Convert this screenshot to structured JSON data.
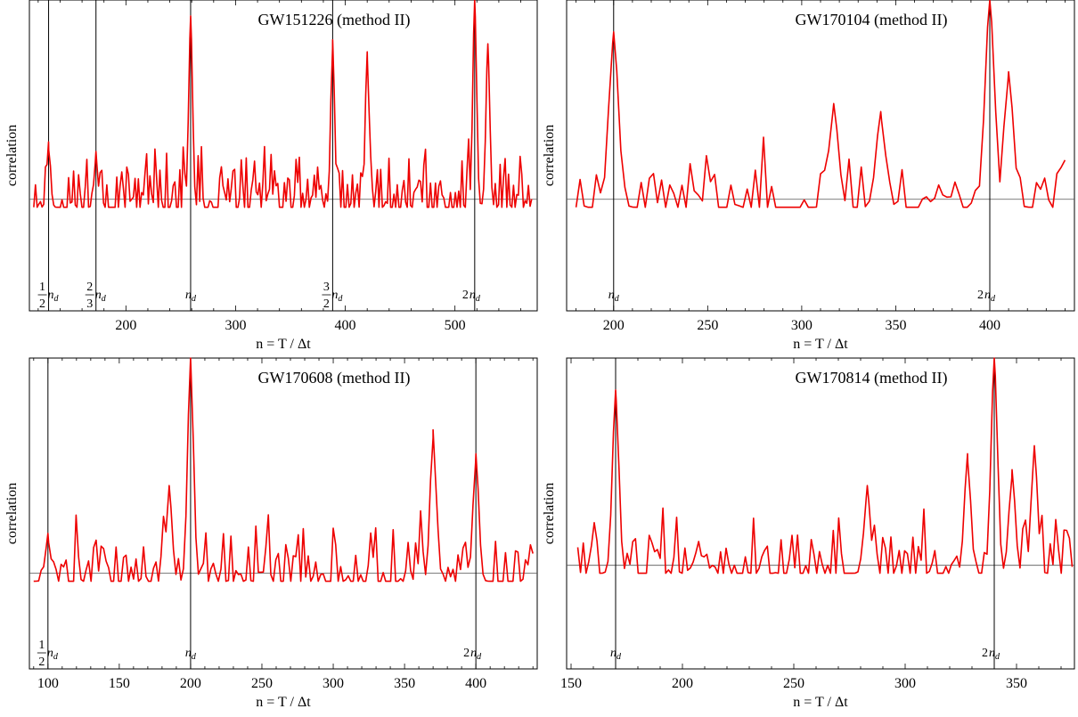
{
  "figure": {
    "xlabel": "n = T / Δt",
    "ylabel": "correlation"
  },
  "colors": {
    "series": "#ee0000",
    "axis": "#000000",
    "zero_line": "#555555"
  },
  "chart_data": [
    {
      "type": "line",
      "title": "GW151226 (method II)",
      "xlabel": "n = T / Δt",
      "ylabel": "correlation",
      "xlim": [
        112,
        575
      ],
      "ylim": [
        -1.4,
        2.5
      ],
      "xticks": [
        200,
        300,
        400,
        500
      ],
      "grid": false,
      "baseline": 0,
      "markers": [
        {
          "x": 129.5,
          "num": "1",
          "den": "2",
          "label": "n_d"
        },
        {
          "x": 172.7,
          "num": "2",
          "den": "3",
          "label": "n_d"
        },
        {
          "x": 259,
          "label": "n_d"
        },
        {
          "x": 388.5,
          "num": "3",
          "den": "2",
          "label": "n_d"
        },
        {
          "x": 518,
          "coef": "2",
          "label": "n_d"
        }
      ],
      "peaks": [
        [
          129.5,
          0.72
        ],
        [
          172.7,
          0.6
        ],
        [
          259,
          2.3
        ],
        [
          388.5,
          2.0
        ],
        [
          420,
          1.85
        ],
        [
          518,
          2.5
        ],
        [
          530,
          1.95
        ]
      ],
      "series": [
        {
          "samples": 300,
          "x_range": [
            116,
            570
          ],
          "seed": 11
        }
      ]
    },
    {
      "type": "line",
      "title": "GW170104 (method II)",
      "xlabel": "n = T / Δt",
      "ylabel": "correlation",
      "xlim": [
        175,
        445
      ],
      "ylim": [
        -1.4,
        2.5
      ],
      "xticks": [
        200,
        250,
        300,
        350,
        400
      ],
      "grid": false,
      "baseline": 0,
      "markers": [
        {
          "x": 200,
          "label": "n_d"
        },
        {
          "x": 400,
          "coef": "2",
          "label": "n_d"
        }
      ],
      "peaks": [
        [
          200,
          2.1
        ],
        [
          317,
          1.2
        ],
        [
          342,
          1.1
        ],
        [
          400,
          2.5
        ],
        [
          410,
          1.6
        ]
      ],
      "series": [
        {
          "samples": 120,
          "x_range": [
            180,
            440
          ],
          "seed": 23
        }
      ]
    },
    {
      "type": "line",
      "title": "GW170608 (method II)",
      "xlabel": "n = T / Δt",
      "ylabel": "correlation",
      "xlim": [
        87,
        443
      ],
      "ylim": [
        -1.2,
        2.7
      ],
      "xticks": [
        100,
        150,
        200,
        250,
        300,
        350,
        400
      ],
      "grid": false,
      "baseline": 0,
      "markers": [
        {
          "x": 100,
          "num": "1",
          "den": "2",
          "label": "n_d"
        },
        {
          "x": 200,
          "label": "n_d"
        },
        {
          "x": 400,
          "coef": "2",
          "label": "n_d"
        }
      ],
      "peaks": [
        [
          100,
          0.5
        ],
        [
          200,
          2.7
        ],
        [
          370,
          1.8
        ],
        [
          400,
          1.5
        ],
        [
          185,
          1.1
        ]
      ],
      "series": [
        {
          "samples": 200,
          "x_range": [
            90,
            440
          ],
          "seed": 37
        }
      ]
    },
    {
      "type": "line",
      "title": "GW170814 (method II)",
      "xlabel": "n = T / Δt",
      "ylabel": "correlation",
      "xlim": [
        148,
        376
      ],
      "ylim": [
        -1.3,
        2.6
      ],
      "xticks": [
        150,
        200,
        250,
        300,
        350
      ],
      "grid": false,
      "baseline": 0,
      "markers": [
        {
          "x": 170,
          "label": "n_d"
        },
        {
          "x": 340,
          "coef": "2",
          "label": "n_d"
        }
      ],
      "peaks": [
        [
          170,
          2.2
        ],
        [
          340,
          2.6
        ],
        [
          348,
          1.2
        ],
        [
          358,
          1.5
        ],
        [
          283,
          1.0
        ],
        [
          328,
          1.4
        ]
      ],
      "series": [
        {
          "samples": 180,
          "x_range": [
            153,
            375
          ],
          "seed": 51
        }
      ]
    }
  ]
}
